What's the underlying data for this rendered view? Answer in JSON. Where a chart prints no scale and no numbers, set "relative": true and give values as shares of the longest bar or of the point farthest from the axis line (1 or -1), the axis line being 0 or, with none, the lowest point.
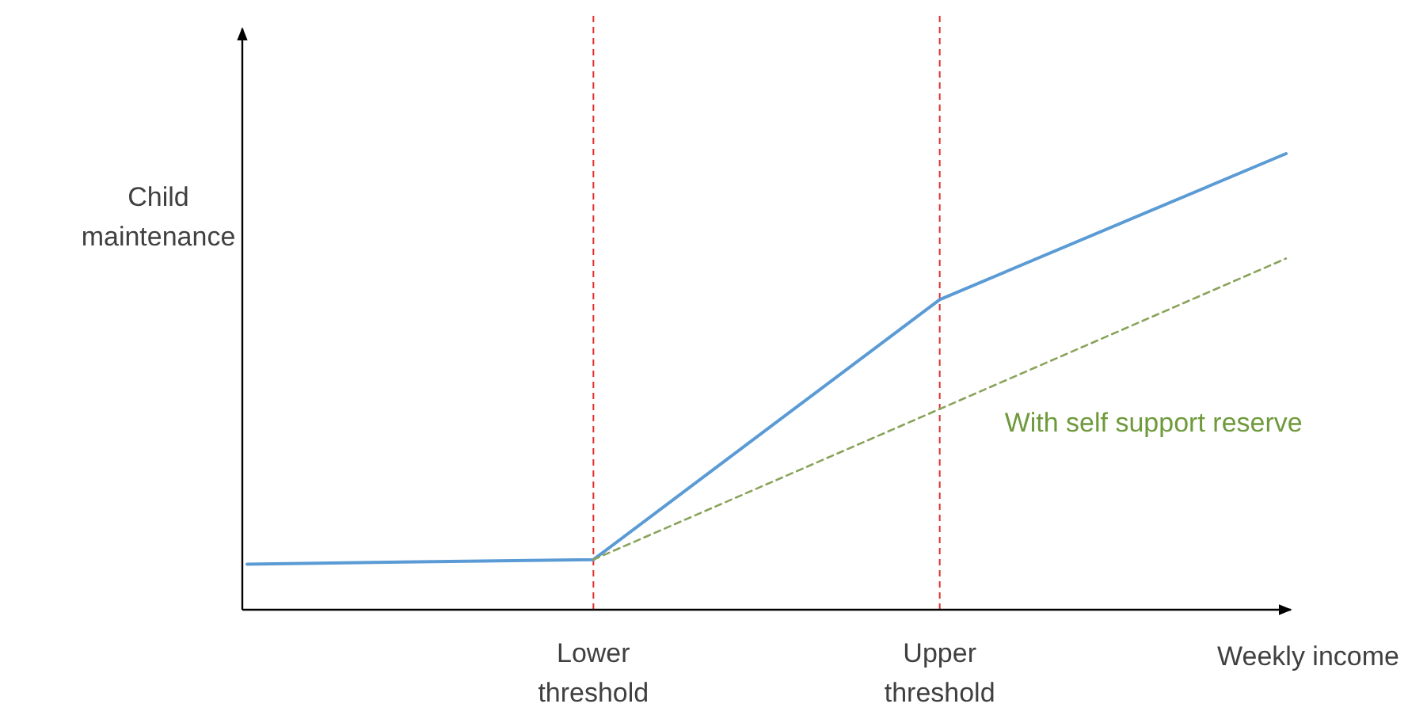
{
  "chart_data": {
    "type": "line",
    "relative": true,
    "xlabel": "Weekly income",
    "ylabel": "Child maintenance",
    "categories": [
      null,
      "Lower threshold",
      "Upper threshold",
      null
    ],
    "series": [
      {
        "color": "#5b9bd5",
        "values": [
          0.1,
          0.11,
          0.68,
          1
        ]
      },
      {
        "name": "With self support reserve",
        "color": "#8aa35a",
        "line_style": "dashed",
        "values": [
          null,
          0.11,
          null,
          0.77
        ]
      }
    ],
    "ref_lines": [
      {
        "axis": "x",
        "value": "Lower threshold",
        "color": "#e0302f",
        "line_style": "dashed"
      },
      {
        "axis": "x",
        "value": "Upper threshold",
        "color": "#e0302f",
        "line_style": "dashed"
      }
    ],
    "marker": "none"
  }
}
